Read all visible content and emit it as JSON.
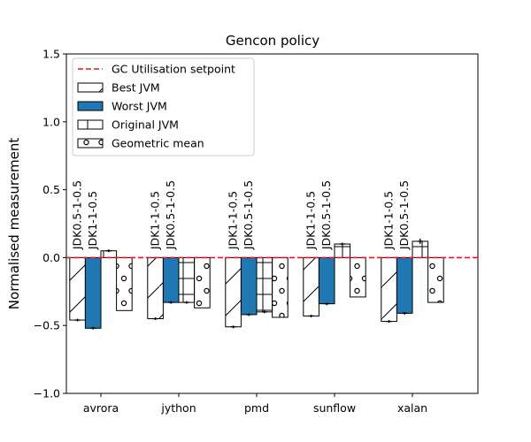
{
  "chart_data": {
    "type": "bar",
    "title": "Gencon policy",
    "xlabel": "",
    "ylabel": "Normalised measurement",
    "ylim": [
      -1.0,
      1.5
    ],
    "yticks": [
      "−1.0",
      "−0.5",
      "0.0",
      "0.5",
      "1.0",
      "1.5"
    ],
    "categories": [
      "avrora",
      "jython",
      "pmd",
      "sunflow",
      "xalan"
    ],
    "setpoint": {
      "name": "GC Utilisation setpoint",
      "value": 0.0,
      "color": "#e41a1c"
    },
    "legend_position": "top-left",
    "series": [
      {
        "name": "Best JVM",
        "color": "#ffffff",
        "hatch": "diagonal",
        "values": [
          -0.46,
          -0.45,
          -0.51,
          -0.43,
          -0.47
        ],
        "errors": [
          0.01,
          0.01,
          0.01,
          0.01,
          0.01
        ]
      },
      {
        "name": "Worst JVM",
        "color": "#1f77b4",
        "hatch": "none",
        "values": [
          -0.52,
          -0.33,
          -0.42,
          -0.34,
          -0.41
        ],
        "errors": [
          0.01,
          0.01,
          0.01,
          0.01,
          0.01
        ]
      },
      {
        "name": "Original JVM",
        "color": "#ffffff",
        "hatch": "grid",
        "values": [
          0.05,
          -0.33,
          -0.4,
          0.1,
          0.12
        ],
        "errors": [
          0.01,
          0.01,
          0.01,
          0.01,
          0.02
        ]
      },
      {
        "name": "Geometric mean",
        "color": "#ffffff",
        "hatch": "circles",
        "values": [
          -0.39,
          -0.37,
          -0.44,
          -0.29,
          -0.33
        ],
        "errors": [
          0,
          0,
          0,
          0,
          0
        ]
      }
    ],
    "annotations": [
      {
        "category": "avrora",
        "labels": [
          "JDK0.5-1-0.5",
          "JDK1-1-0.5"
        ]
      },
      {
        "category": "jython",
        "labels": [
          "JDK1-1-0.5",
          "JDK0.5-1-0.5"
        ]
      },
      {
        "category": "pmd",
        "labels": [
          "JDK1-1-0.5",
          "JDK0.5-1-0.5"
        ]
      },
      {
        "category": "sunflow",
        "labels": [
          "JDK1-1-0.5",
          "JDK0.5-1-0.5"
        ]
      },
      {
        "category": "xalan",
        "labels": [
          "JDK1-1-0.5",
          "JDK0.5-1-0.5"
        ]
      }
    ]
  }
}
